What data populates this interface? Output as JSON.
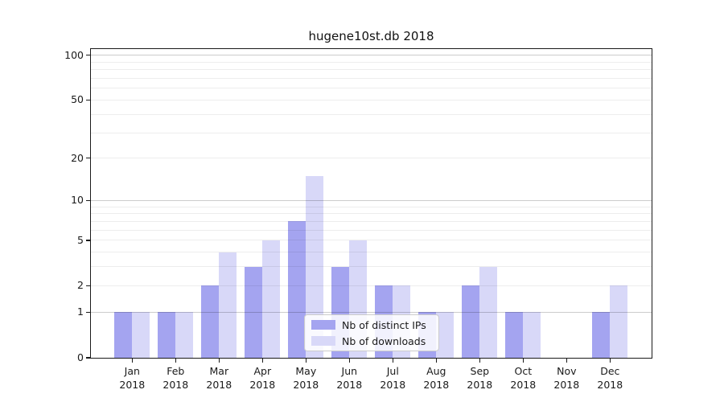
{
  "chart_data": {
    "type": "bar",
    "title": "hugene10st.db 2018",
    "yscale": "log1p",
    "ylim": [
      0,
      110
    ],
    "grid": "horizontal",
    "categories": [
      "Jan",
      "Feb",
      "Mar",
      "Apr",
      "May",
      "Jun",
      "Jul",
      "Aug",
      "Sep",
      "Oct",
      "Nov",
      "Dec"
    ],
    "x_year_line": "2018",
    "series": [
      {
        "name": "Nb of distinct IPs",
        "color": "#a4a4f0",
        "values": [
          1,
          1,
          2,
          3,
          7,
          3,
          2,
          1,
          2,
          1,
          0,
          1
        ]
      },
      {
        "name": "Nb of downloads",
        "color": "#d8d8f8",
        "values": [
          1,
          1,
          4,
          5,
          15,
          5,
          2,
          1,
          3,
          1,
          0,
          2
        ]
      }
    ],
    "yticks": [
      0,
      1,
      2,
      5,
      10,
      20,
      50,
      100
    ],
    "gridlines_minor": [
      2,
      3,
      4,
      5,
      6,
      7,
      8,
      9,
      20,
      30,
      40,
      50,
      60,
      70,
      80,
      90
    ],
    "gridlines_major": [
      1,
      10,
      100
    ],
    "legend_position": "lower center"
  }
}
